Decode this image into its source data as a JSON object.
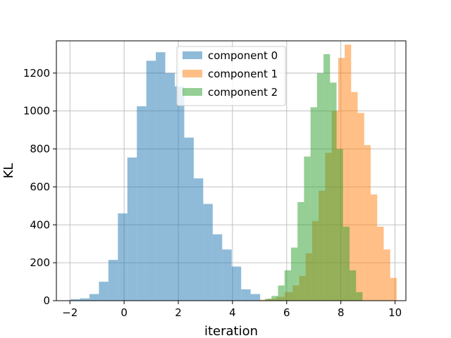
{
  "chart_data": {
    "type": "bar",
    "title": "",
    "xlabel": "iteration",
    "ylabel": "KL",
    "xlim": [
      -2.5,
      10.4
    ],
    "ylim": [
      0,
      1370
    ],
    "x_ticks": [
      -2,
      0,
      2,
      4,
      6,
      8,
      10
    ],
    "y_ticks": [
      0,
      200,
      400,
      600,
      800,
      1000,
      1200
    ],
    "grid": true,
    "legend_position": "top-center",
    "series": [
      {
        "name": "component 0",
        "color": "#1f77b4",
        "opacity": 0.5,
        "bin_edges": [
          -1.98,
          -1.63,
          -1.28,
          -0.93,
          -0.58,
          -0.23,
          0.12,
          0.47,
          0.82,
          1.17,
          1.52,
          1.87,
          2.22,
          2.57,
          2.92,
          3.27,
          3.62,
          3.97,
          4.32,
          4.67,
          5.02
        ],
        "counts": [
          8,
          12,
          35,
          100,
          215,
          460,
          755,
          1025,
          1265,
          1310,
          1200,
          1130,
          860,
          645,
          510,
          350,
          270,
          180,
          60,
          35
        ]
      },
      {
        "name": "component 1",
        "color": "#ff7f0e",
        "opacity": 0.5,
        "bin_edges": [
          4.98,
          5.3,
          5.62,
          5.92,
          6.22,
          6.46,
          6.7,
          6.94,
          7.18,
          7.42,
          7.66,
          7.9,
          8.14,
          8.38,
          8.62,
          8.86,
          9.1,
          9.34,
          9.58,
          9.82,
          10.06
        ],
        "counts": [
          5,
          10,
          20,
          45,
          80,
          130,
          250,
          420,
          580,
          780,
          1000,
          1280,
          1350,
          1100,
          990,
          820,
          560,
          390,
          270,
          120
        ]
      },
      {
        "name": "component 2",
        "color": "#2ca02c",
        "opacity": 0.5,
        "bin_edges": [
          5.2,
          5.44,
          5.68,
          5.92,
          6.16,
          6.4,
          6.64,
          6.88,
          7.12,
          7.36,
          7.6,
          7.84,
          8.08,
          8.32,
          8.56,
          8.8
        ],
        "counts": [
          10,
          25,
          80,
          160,
          280,
          520,
          760,
          1020,
          1200,
          1300,
          1150,
          800,
          390,
          160,
          45
        ]
      }
    ]
  }
}
